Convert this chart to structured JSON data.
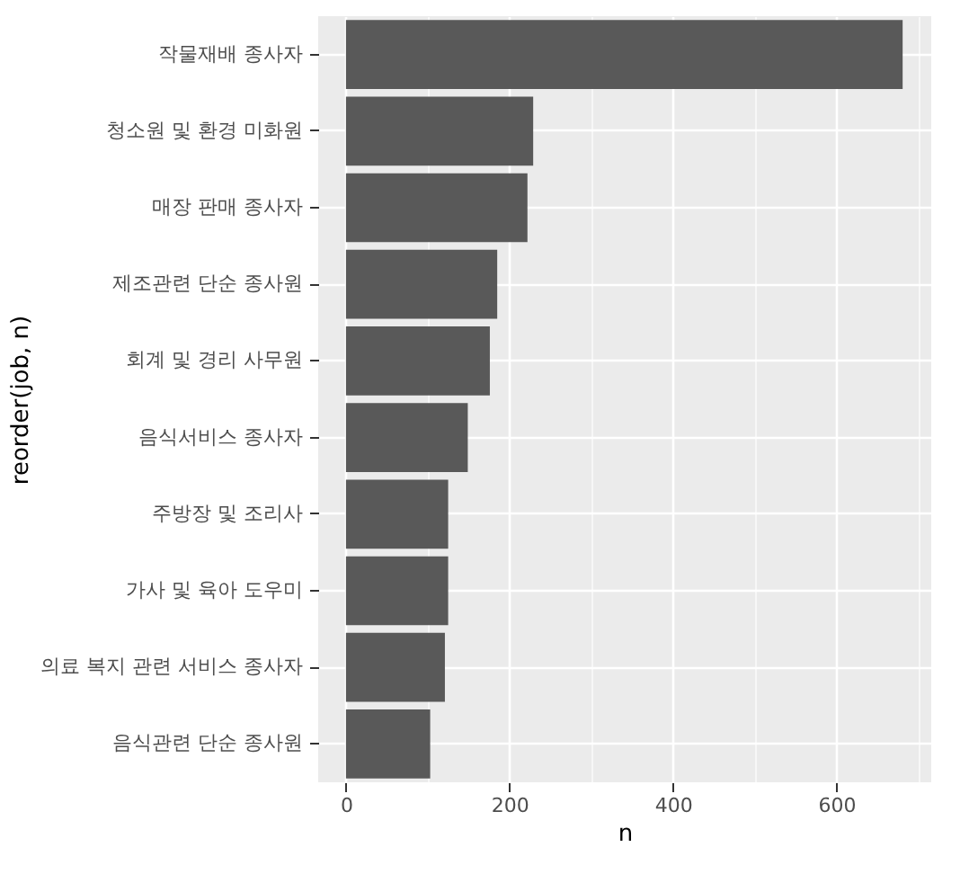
{
  "chart_data": {
    "type": "bar",
    "orientation": "horizontal",
    "xlabel": "n",
    "ylabel": "reorder(job, n)",
    "categories": [
      "작물재배 종사자",
      "청소원 및 환경 미화원",
      "매장 판매 종사자",
      "제조관련 단순 종사원",
      "회계 및 경리 사무원",
      "음식서비스 종사자",
      "주방장 및 조리사",
      "가사 및 육아 도우미",
      "의료 복지 관련 서비스 종사자",
      "음식관련 단순 종사원"
    ],
    "values": [
      681,
      229,
      222,
      185,
      176,
      149,
      125,
      125,
      121,
      103
    ],
    "color": "#595959",
    "xlim": [
      -34,
      716
    ],
    "xticks": [
      0,
      {
        "value": 100,
        "label": null
      },
      200,
      {
        "value": 300,
        "label": null
      },
      400,
      {
        "value": 500,
        "label": null
      },
      600,
      {
        "value": 700,
        "label": null
      }
    ],
    "grid": true
  }
}
